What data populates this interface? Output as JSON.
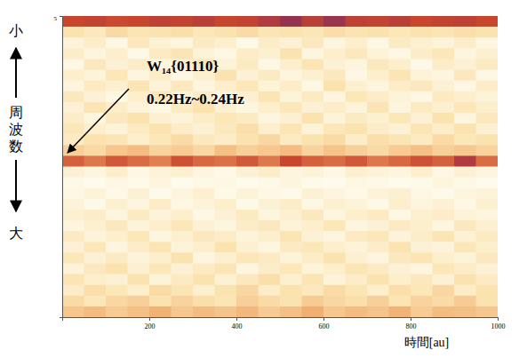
{
  "chart_data": {
    "type": "heatmap",
    "x_label": "時間[au]",
    "y_label": "周波数",
    "y_label_top": "小",
    "y_label_bottom": "大",
    "annotations": [
      "W₁₄{01110}",
      "0.22Hz~0.24Hz"
    ],
    "xlim": [
      0,
      1000
    ],
    "xticks": [
      200,
      400,
      600,
      800,
      1000
    ],
    "ylim": [
      0,
      5
    ],
    "yticks": [
      5
    ],
    "zlim": [
      0,
      1
    ],
    "z": [
      [
        0.85,
        0.86,
        0.84,
        0.85,
        0.87,
        0.86,
        0.88,
        0.85,
        0.86,
        0.9,
        0.95,
        0.88,
        0.94,
        0.87,
        0.86,
        0.88,
        0.85,
        0.86,
        0.87,
        0.85
      ],
      [
        0.3,
        0.25,
        0.35,
        0.28,
        0.3,
        0.32,
        0.26,
        0.3,
        0.34,
        0.28,
        0.3,
        0.27,
        0.33,
        0.29,
        0.31,
        0.26,
        0.3,
        0.28,
        0.32,
        0.3
      ],
      [
        0.12,
        0.2,
        0.08,
        0.25,
        0.15,
        0.1,
        0.22,
        0.18,
        0.06,
        0.2,
        0.14,
        0.24,
        0.1,
        0.18,
        0.08,
        0.22,
        0.16,
        0.12,
        0.2,
        0.1
      ],
      [
        0.2,
        0.1,
        0.18,
        0.06,
        0.22,
        0.28,
        0.12,
        0.08,
        0.2,
        0.16,
        0.3,
        0.1,
        0.18,
        0.24,
        0.12,
        0.08,
        0.2,
        0.26,
        0.1,
        0.16
      ],
      [
        0.08,
        0.24,
        0.14,
        0.2,
        0.1,
        0.16,
        0.26,
        0.12,
        0.22,
        0.08,
        0.18,
        0.28,
        0.14,
        0.1,
        0.24,
        0.18,
        0.06,
        0.2,
        0.14,
        0.22
      ],
      [
        0.18,
        0.12,
        0.26,
        0.1,
        0.2,
        0.08,
        0.16,
        0.3,
        0.14,
        0.22,
        0.1,
        0.16,
        0.24,
        0.08,
        0.18,
        0.28,
        0.12,
        0.1,
        0.24,
        0.08
      ],
      [
        0.1,
        0.22,
        0.16,
        0.28,
        0.12,
        0.24,
        0.1,
        0.18,
        0.26,
        0.12,
        0.2,
        0.08,
        0.3,
        0.16,
        0.1,
        0.2,
        0.24,
        0.14,
        0.08,
        0.2
      ],
      [
        0.24,
        0.14,
        0.08,
        0.18,
        0.26,
        0.12,
        0.2,
        0.1,
        0.16,
        0.28,
        0.12,
        0.22,
        0.1,
        0.26,
        0.2,
        0.12,
        0.08,
        0.22,
        0.18,
        0.12
      ],
      [
        0.14,
        0.28,
        0.2,
        0.12,
        0.08,
        0.22,
        0.3,
        0.16,
        0.1,
        0.18,
        0.26,
        0.14,
        0.2,
        0.12,
        0.28,
        0.1,
        0.22,
        0.16,
        0.26,
        0.18
      ],
      [
        0.2,
        0.1,
        0.24,
        0.3,
        0.16,
        0.12,
        0.2,
        0.26,
        0.22,
        0.1,
        0.16,
        0.3,
        0.12,
        0.22,
        0.16,
        0.26,
        0.14,
        0.3,
        0.1,
        0.24
      ],
      [
        0.26,
        0.18,
        0.12,
        0.22,
        0.3,
        0.2,
        0.14,
        0.24,
        0.32,
        0.18,
        0.28,
        0.12,
        0.26,
        0.3,
        0.2,
        0.14,
        0.28,
        0.2,
        0.3,
        0.16
      ],
      [
        0.22,
        0.3,
        0.28,
        0.18,
        0.26,
        0.34,
        0.24,
        0.2,
        0.3,
        0.36,
        0.22,
        0.3,
        0.34,
        0.2,
        0.32,
        0.28,
        0.22,
        0.34,
        0.26,
        0.3
      ],
      [
        0.4,
        0.35,
        0.45,
        0.5,
        0.38,
        0.42,
        0.36,
        0.48,
        0.4,
        0.44,
        0.5,
        0.38,
        0.46,
        0.4,
        0.35,
        0.42,
        0.48,
        0.4,
        0.44,
        0.38
      ],
      [
        0.78,
        0.72,
        0.8,
        0.75,
        0.7,
        0.82,
        0.76,
        0.74,
        0.8,
        0.72,
        0.85,
        0.78,
        0.75,
        0.8,
        0.72,
        0.76,
        0.82,
        0.78,
        0.9,
        0.75
      ],
      [
        0.14,
        0.1,
        0.18,
        0.08,
        0.12,
        0.16,
        0.1,
        0.06,
        0.14,
        0.2,
        0.1,
        0.12,
        0.08,
        0.16,
        0.12,
        0.1,
        0.18,
        0.08,
        0.14,
        0.1
      ],
      [
        0.06,
        0.04,
        0.08,
        0.05,
        0.1,
        0.04,
        0.06,
        0.08,
        0.04,
        0.06,
        0.1,
        0.05,
        0.04,
        0.08,
        0.06,
        0.04,
        0.05,
        0.1,
        0.06,
        0.04
      ],
      [
        0.08,
        0.12,
        0.06,
        0.14,
        0.05,
        0.1,
        0.16,
        0.06,
        0.12,
        0.08,
        0.05,
        0.14,
        0.1,
        0.06,
        0.12,
        0.16,
        0.08,
        0.05,
        0.1,
        0.12
      ],
      [
        0.12,
        0.06,
        0.16,
        0.1,
        0.2,
        0.08,
        0.12,
        0.18,
        0.06,
        0.14,
        0.2,
        0.08,
        0.16,
        0.12,
        0.06,
        0.18,
        0.1,
        0.14,
        0.08,
        0.16
      ],
      [
        0.16,
        0.2,
        0.1,
        0.22,
        0.12,
        0.18,
        0.08,
        0.14,
        0.22,
        0.1,
        0.16,
        0.24,
        0.1,
        0.18,
        0.22,
        0.08,
        0.16,
        0.2,
        0.12,
        0.1
      ],
      [
        0.1,
        0.16,
        0.24,
        0.12,
        0.18,
        0.26,
        0.14,
        0.1,
        0.2,
        0.24,
        0.12,
        0.18,
        0.26,
        0.1,
        0.14,
        0.22,
        0.18,
        0.1,
        0.24,
        0.16
      ],
      [
        0.22,
        0.12,
        0.18,
        0.26,
        0.1,
        0.16,
        0.24,
        0.2,
        0.12,
        0.18,
        0.28,
        0.14,
        0.1,
        0.22,
        0.26,
        0.12,
        0.2,
        0.28,
        0.14,
        0.22
      ],
      [
        0.14,
        0.26,
        0.1,
        0.2,
        0.28,
        0.12,
        0.18,
        0.3,
        0.16,
        0.1,
        0.22,
        0.26,
        0.18,
        0.12,
        0.2,
        0.3,
        0.14,
        0.12,
        0.26,
        0.18
      ],
      [
        0.26,
        0.14,
        0.22,
        0.12,
        0.18,
        0.3,
        0.1,
        0.16,
        0.26,
        0.22,
        0.12,
        0.2,
        0.3,
        0.16,
        0.1,
        0.24,
        0.28,
        0.18,
        0.12,
        0.24
      ],
      [
        0.12,
        0.24,
        0.3,
        0.16,
        0.26,
        0.14,
        0.22,
        0.28,
        0.1,
        0.2,
        0.26,
        0.12,
        0.18,
        0.28,
        0.22,
        0.14,
        0.1,
        0.26,
        0.2,
        0.14
      ],
      [
        0.28,
        0.18,
        0.14,
        0.3,
        0.12,
        0.22,
        0.3,
        0.14,
        0.24,
        0.32,
        0.16,
        0.28,
        0.12,
        0.2,
        0.3,
        0.18,
        0.24,
        0.14,
        0.3,
        0.22
      ],
      [
        0.2,
        0.32,
        0.26,
        0.18,
        0.34,
        0.28,
        0.16,
        0.3,
        0.36,
        0.2,
        0.3,
        0.24,
        0.34,
        0.28,
        0.18,
        0.32,
        0.26,
        0.36,
        0.2,
        0.3
      ],
      [
        0.34,
        0.26,
        0.36,
        0.4,
        0.3,
        0.38,
        0.32,
        0.28,
        0.4,
        0.34,
        0.3,
        0.42,
        0.36,
        0.32,
        0.4,
        0.28,
        0.38,
        0.34,
        0.42,
        0.3
      ],
      [
        0.45,
        0.5,
        0.42,
        0.48,
        0.55,
        0.44,
        0.5,
        0.46,
        0.52,
        0.42,
        0.48,
        0.56,
        0.44,
        0.5,
        0.46,
        0.54,
        0.42,
        0.5,
        0.48,
        0.44
      ]
    ]
  }
}
